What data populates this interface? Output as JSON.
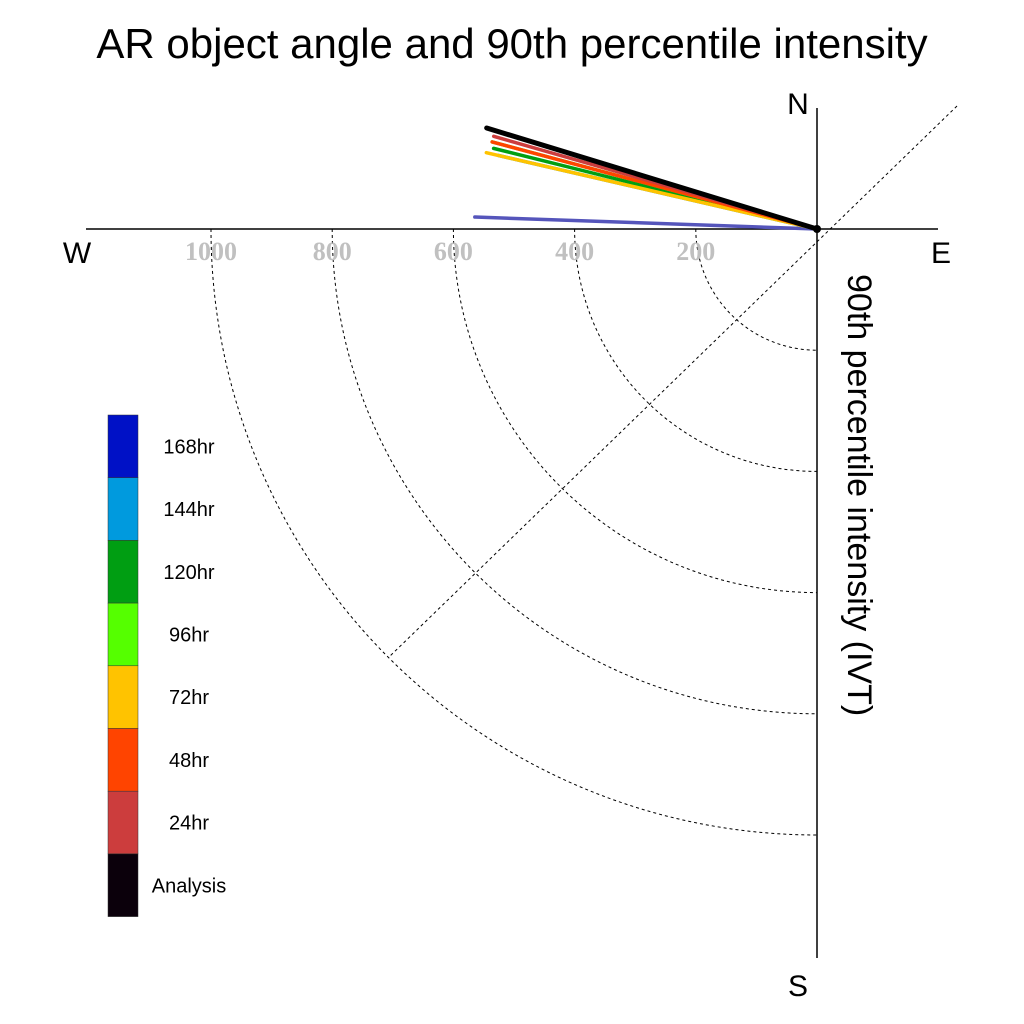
{
  "chart_data": {
    "type": "polar-line",
    "title": "AR object angle and 90th percentile intensity",
    "ylabel": "90th percentile intensity (IVT)",
    "compass": {
      "north": "N",
      "south": "S",
      "east": "E",
      "west": "W"
    },
    "radial_ticks": [
      200,
      400,
      600,
      800,
      1000
    ],
    "radial_tick_labels": [
      "200",
      "400",
      "600",
      "800",
      "1000"
    ],
    "rmax": 1200,
    "legend_placement": "left",
    "series": [
      {
        "name": "168hr",
        "color": "#0011C6",
        "line_color": "#5555BB",
        "angle_deg": 178,
        "intensity": 565
      },
      {
        "name": "144hr",
        "color": "#009ADE",
        "line_color": "#009ADE",
        "angle_deg": 167,
        "intensity": 540
      },
      {
        "name": "120hr",
        "color": "#009E12",
        "line_color": "#009E12",
        "angle_deg": 166,
        "intensity": 550
      },
      {
        "name": "96hr",
        "color": "#55FF00",
        "line_color": "#55FF00",
        "angle_deg": 165,
        "intensity": 555
      },
      {
        "name": "72hr",
        "color": "#FFC300",
        "line_color": "#FFC300",
        "angle_deg": 167,
        "intensity": 560
      },
      {
        "name": "48hr",
        "color": "#FF4400",
        "line_color": "#FF4400",
        "angle_deg": 165,
        "intensity": 555
      },
      {
        "name": "24hr",
        "color": "#CC3D3D",
        "line_color": "#CC3D3D",
        "angle_deg": 164,
        "intensity": 555
      },
      {
        "name": "Analysis",
        "color": "#0B000B",
        "line_color": "#000000",
        "angle_deg": 163,
        "intensity": 570
      }
    ]
  }
}
